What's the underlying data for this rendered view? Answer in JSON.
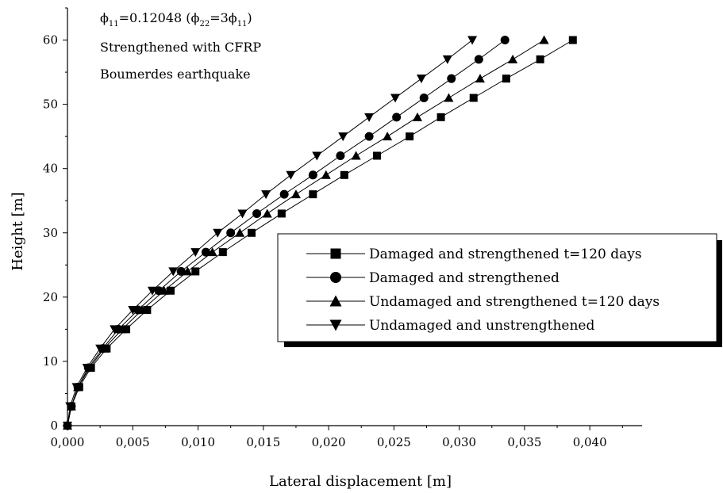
{
  "chart_data": {
    "type": "line",
    "xlabel": "Lateral displacement [m]",
    "ylabel": "Height [m]",
    "xlim": [
      0,
      0.044
    ],
    "ylim": [
      0,
      65
    ],
    "x_ticks": [
      0,
      0.005,
      0.01,
      0.015,
      0.02,
      0.025,
      0.03,
      0.035,
      0.04
    ],
    "x_tick_labels": [
      "0,000",
      "0,005",
      "0,010",
      "0,015",
      "0,020",
      "0,025",
      "0,030",
      "0,035",
      "0,040"
    ],
    "y_ticks": [
      0,
      10,
      20,
      30,
      40,
      50,
      60
    ],
    "y_tick_labels": [
      "0",
      "10",
      "20",
      "30",
      "40",
      "50",
      "60"
    ],
    "grid": false,
    "legend_position": "center-right",
    "annotation": {
      "phi_main": "ϕ",
      "phi_sub_11": "11",
      "eq_value": "=0.12048 (",
      "phi_sub_22": "22",
      "eq_mid": "=3",
      "close": ")",
      "line2": "Strengthened with CFRP",
      "line3": "Boumerdes earthquake"
    },
    "heights": [
      0,
      3,
      6,
      9,
      12,
      15,
      18,
      21,
      24,
      27,
      30,
      33,
      36,
      39,
      42,
      45,
      48,
      51,
      54,
      57,
      60
    ],
    "series": [
      {
        "name": "Damaged and strengthened t=120 days",
        "marker": "square",
        "x": [
          0,
          0.0003,
          0.0009,
          0.0018,
          0.003,
          0.0045,
          0.0061,
          0.0079,
          0.0098,
          0.0119,
          0.0141,
          0.0164,
          0.0188,
          0.0212,
          0.0237,
          0.0262,
          0.0286,
          0.0311,
          0.0336,
          0.0362,
          0.0387
        ]
      },
      {
        "name": "Damaged and strengthened",
        "marker": "circle",
        "x": [
          0,
          0.0003,
          0.0008,
          0.0016,
          0.0027,
          0.0039,
          0.0054,
          0.007,
          0.0087,
          0.0106,
          0.0125,
          0.0145,
          0.0166,
          0.0188,
          0.0209,
          0.0231,
          0.0252,
          0.0273,
          0.0294,
          0.0315,
          0.0335
        ]
      },
      {
        "name": "Undamaged and strengthened t=120 days",
        "marker": "triangle-up",
        "x": [
          0,
          0.0003,
          0.0008,
          0.0017,
          0.0028,
          0.0042,
          0.0057,
          0.0074,
          0.0092,
          0.0111,
          0.0132,
          0.0153,
          0.0175,
          0.0198,
          0.0221,
          0.0245,
          0.0268,
          0.0292,
          0.0316,
          0.0341,
          0.0365
        ]
      },
      {
        "name": "Undamaged and unstrengthened",
        "marker": "triangle-down",
        "x": [
          0,
          0.0002,
          0.0007,
          0.0015,
          0.0025,
          0.0036,
          0.005,
          0.0065,
          0.0081,
          0.0098,
          0.0115,
          0.0134,
          0.0152,
          0.0171,
          0.0191,
          0.0211,
          0.0231,
          0.0251,
          0.0271,
          0.0291,
          0.031
        ]
      }
    ]
  }
}
